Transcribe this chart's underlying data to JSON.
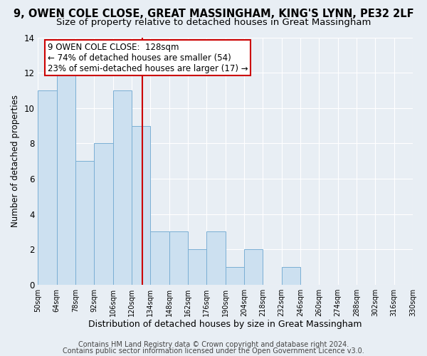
{
  "title1": "9, OWEN COLE CLOSE, GREAT MASSINGHAM, KING'S LYNN, PE32 2LF",
  "title2": "Size of property relative to detached houses in Great Massingham",
  "xlabel": "Distribution of detached houses by size in Great Massingham",
  "ylabel": "Number of detached properties",
  "bin_edges": [
    50,
    64,
    78,
    92,
    106,
    120,
    134,
    148,
    162,
    176,
    190,
    204,
    218,
    232,
    246,
    260,
    274,
    288,
    302,
    316,
    330
  ],
  "counts": [
    11,
    12,
    7,
    8,
    11,
    9,
    3,
    3,
    2,
    3,
    1,
    2,
    0,
    1,
    0,
    0,
    0,
    0,
    0,
    0
  ],
  "bar_color": "#cce0f0",
  "bar_edge_color": "#7aafd4",
  "vline_x": 128,
  "vline_color": "#cc0000",
  "annotation_box_color": "#cc0000",
  "annotation_text_line1": "9 OWEN COLE CLOSE:  128sqm",
  "annotation_text_line2": "← 74% of detached houses are smaller (54)",
  "annotation_text_line3": "23% of semi-detached houses are larger (17) →",
  "ylim": [
    0,
    14
  ],
  "yticks": [
    0,
    2,
    4,
    6,
    8,
    10,
    12,
    14
  ],
  "xtick_labels": [
    "50sqm",
    "64sqm",
    "78sqm",
    "92sqm",
    "106sqm",
    "120sqm",
    "134sqm",
    "148sqm",
    "162sqm",
    "176sqm",
    "190sqm",
    "204sqm",
    "218sqm",
    "232sqm",
    "246sqm",
    "260sqm",
    "274sqm",
    "288sqm",
    "302sqm",
    "316sqm",
    "330sqm"
  ],
  "footnote1": "Contains HM Land Registry data © Crown copyright and database right 2024.",
  "footnote2": "Contains public sector information licensed under the Open Government Licence v3.0.",
  "bg_color": "#e8eef4",
  "plot_bg_color": "#e8eef4",
  "grid_color": "#ffffff",
  "title1_fontsize": 10.5,
  "title2_fontsize": 9.5,
  "xlabel_fontsize": 9,
  "ylabel_fontsize": 8.5,
  "annotation_fontsize": 8.5,
  "footnote_fontsize": 7
}
